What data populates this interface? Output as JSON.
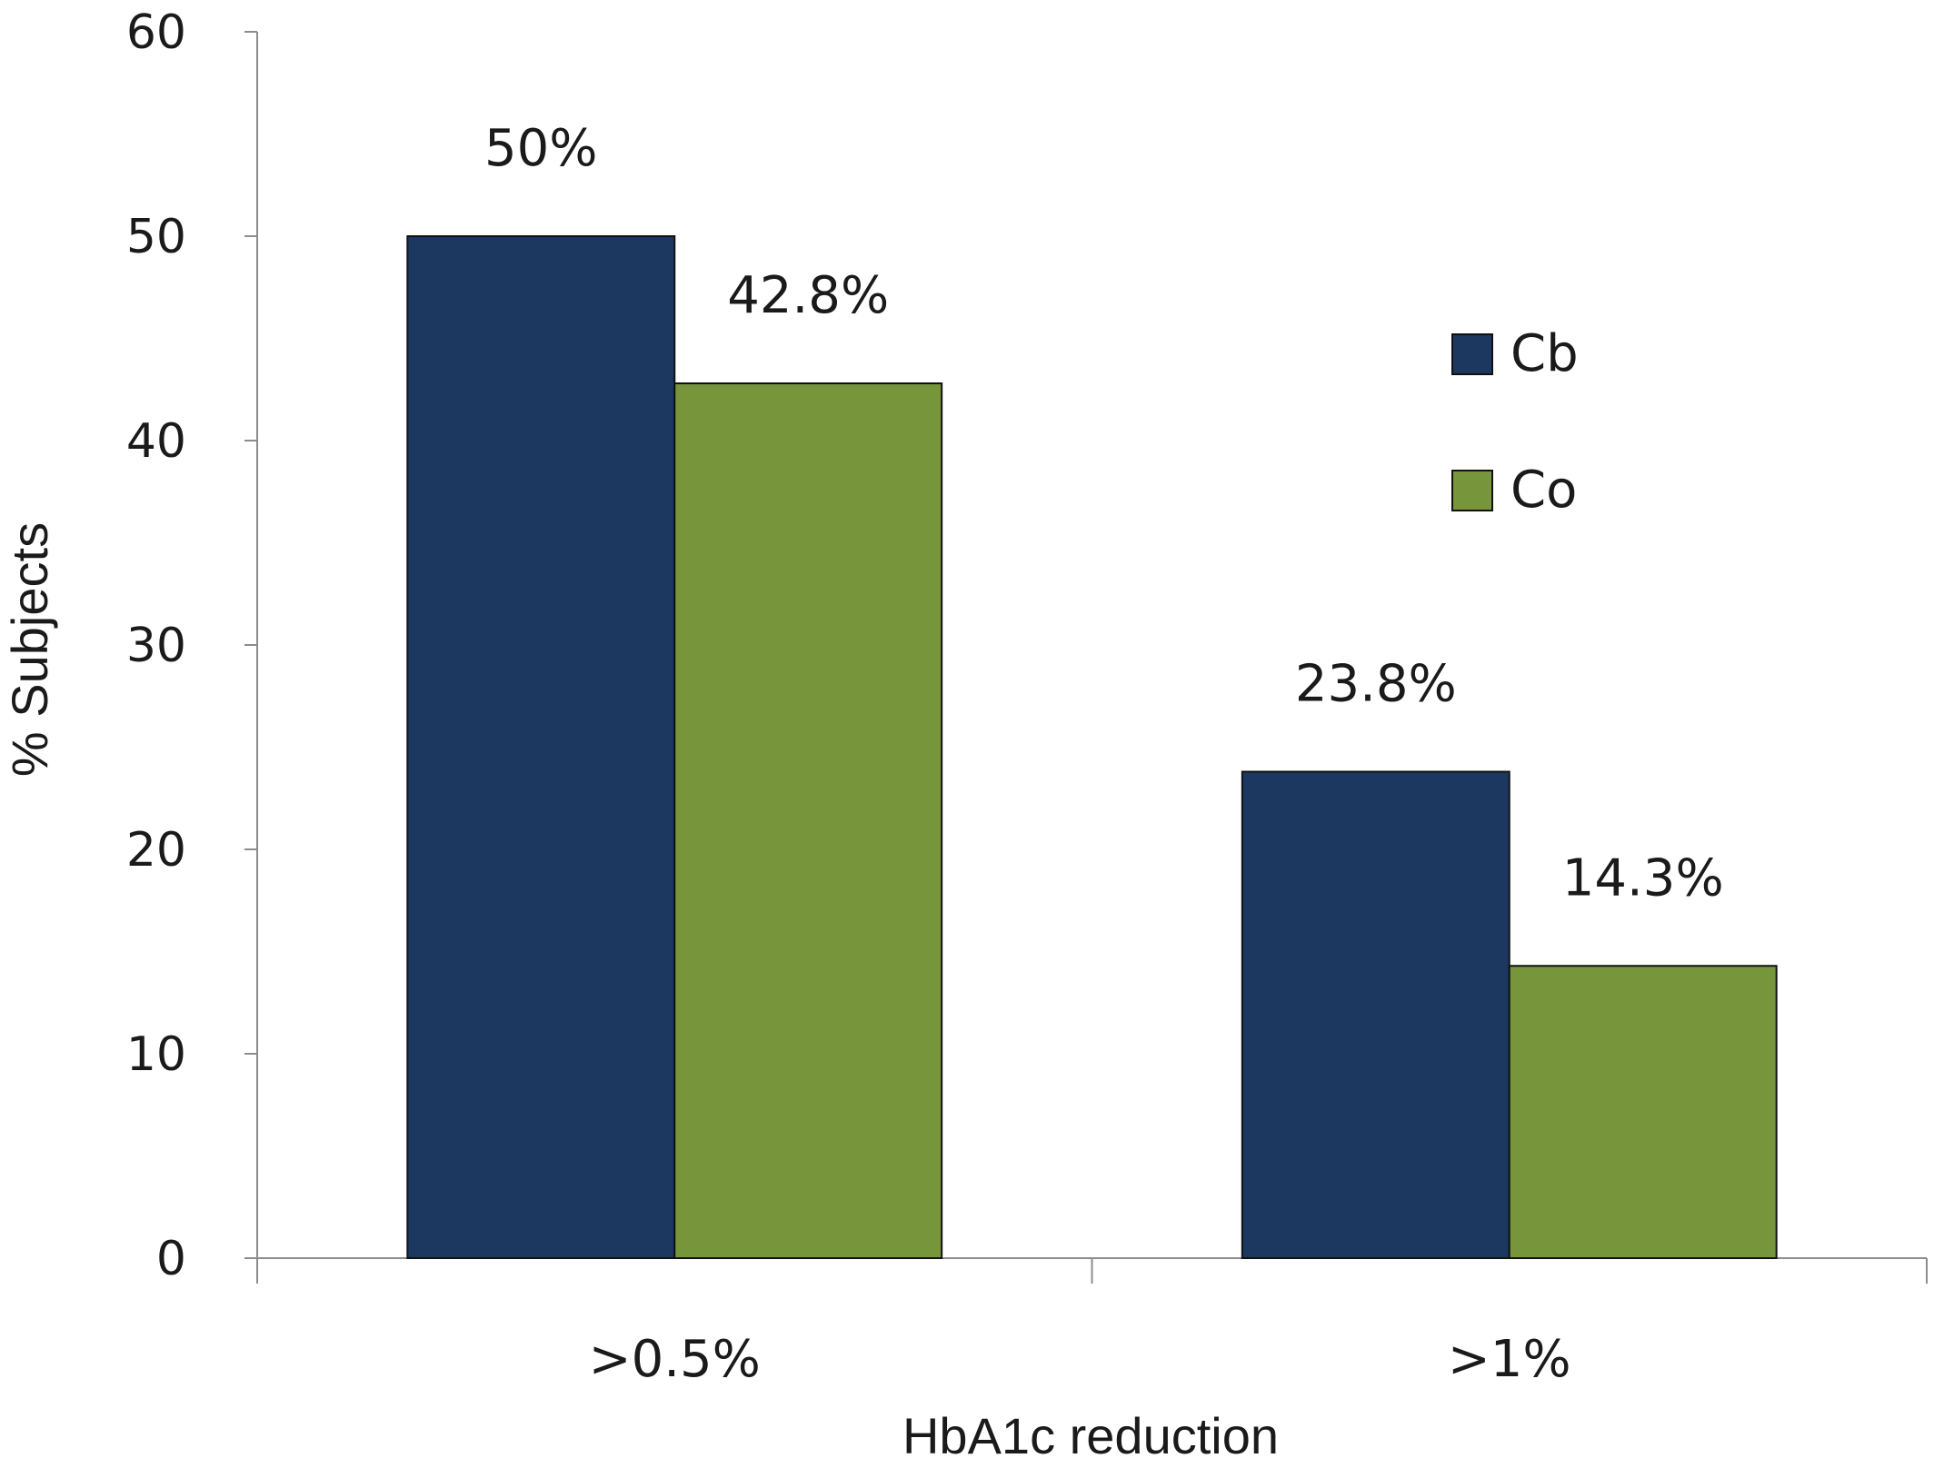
{
  "chart_data": {
    "type": "bar",
    "title": "",
    "xlabel": "HbA1c reduction",
    "ylabel": "% Subjects",
    "categories": [
      ">0.5%",
      ">1%"
    ],
    "series": [
      {
        "name": "Cb",
        "values": [
          50,
          23.8
        ],
        "labels": [
          "50%",
          "23.8%"
        ],
        "color": "#1c3860"
      },
      {
        "name": "Co",
        "values": [
          42.8,
          14.3
        ],
        "labels": [
          "42.8%",
          "14.3%"
        ],
        "color": "#77953b"
      }
    ],
    "ylim": [
      0,
      60
    ],
    "yticks": [
      "0",
      "10",
      "20",
      "30",
      "40",
      "50",
      "60"
    ],
    "grid": false,
    "legend_position": "right"
  }
}
